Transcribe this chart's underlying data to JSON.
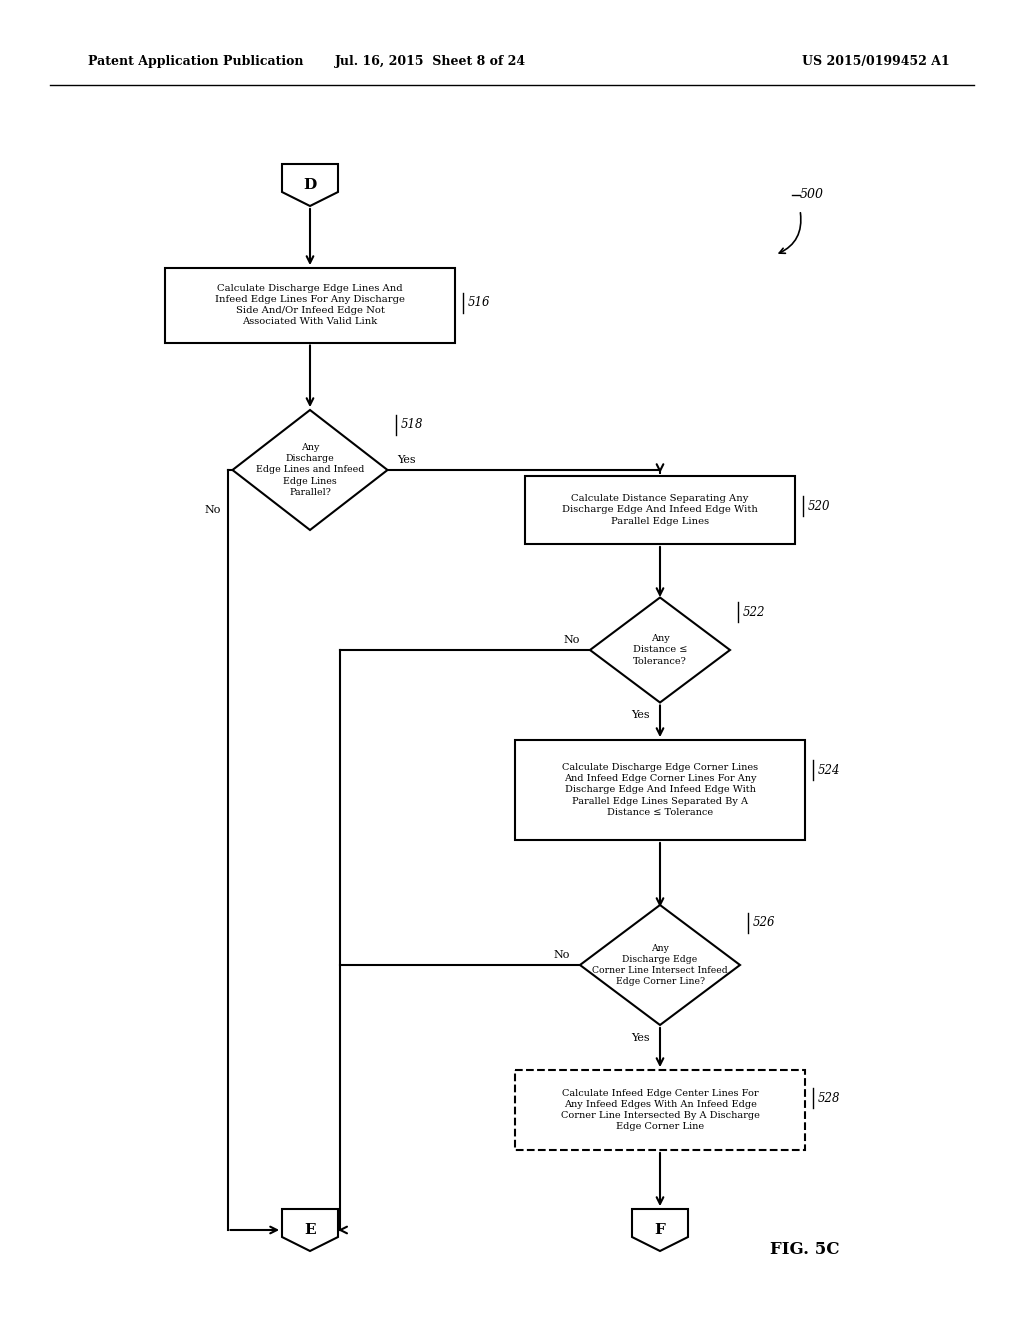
{
  "title_left": "Patent Application Publication",
  "title_mid": "Jul. 16, 2015  Sheet 8 of 24",
  "title_right": "US 2015/0199452 A1",
  "fig_label": "FIG. 5C",
  "bg_color": "#ffffff",
  "line_color": "#000000",
  "connector_D_label": "D",
  "connector_E_label": "E",
  "connector_F_label": "F",
  "box516_text": "Calculate Discharge Edge Lines And\nInfeed Edge Lines For Any Discharge\nSide And/Or Infeed Edge Not\nAssociated With Valid Link",
  "box516_num": "516",
  "diamond518_text": "Any\nDischarge\nEdge Lines and Infeed\nEdge Lines\nParallel?",
  "diamond518_num": "518",
  "box520_text": "Calculate Distance Separating Any\nDischarge Edge And Infeed Edge With\nParallel Edge Lines",
  "box520_num": "520",
  "diamond522_text": "Any\nDistance ≤\nTolerance?",
  "diamond522_num": "522",
  "box524_text": "Calculate Discharge Edge Corner Lines\nAnd Infeed Edge Corner Lines For Any\nDischarge Edge And Infeed Edge With\nParallel Edge Lines Separated By A\nDistance ≤ Tolerance",
  "box524_num": "524",
  "diamond526_text": "Any\nDischarge Edge\nCorner Line Intersect Infeed\nEdge Corner Line?",
  "diamond526_num": "526",
  "box528_text": "Calculate Infeed Edge Center Lines For\nAny Infeed Edges With An Infeed Edge\nCorner Line Intersected By A Discharge\nEdge Corner Line",
  "box528_num": "528",
  "ref500": "500"
}
